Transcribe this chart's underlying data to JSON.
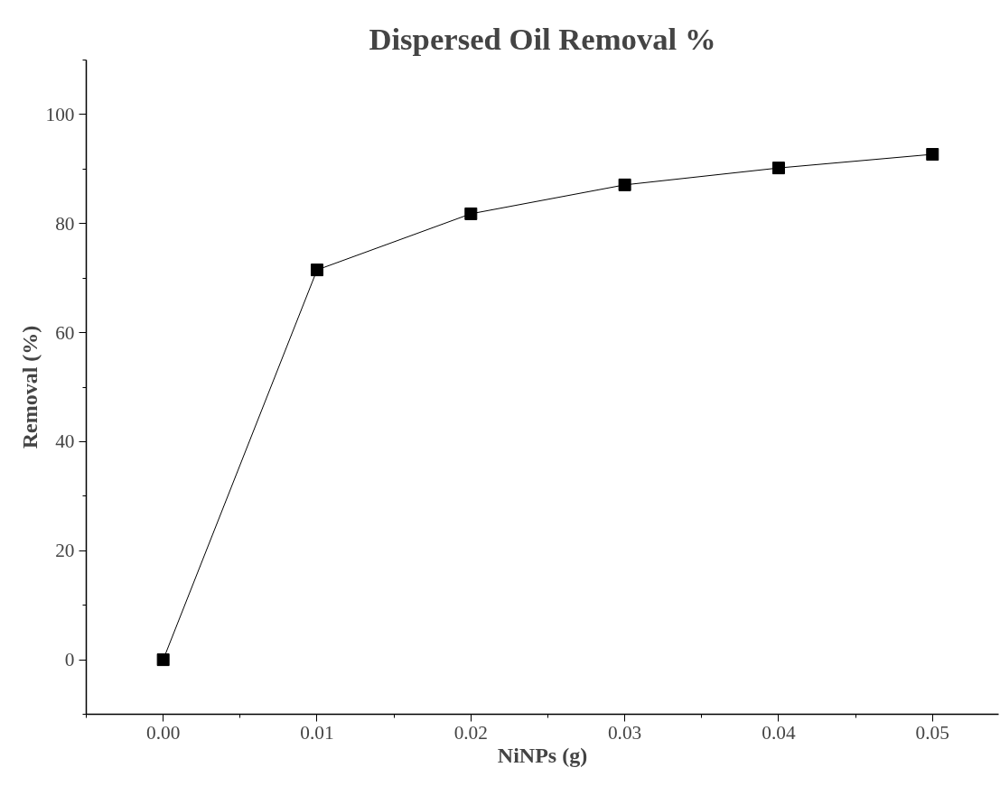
{
  "chart_data": {
    "type": "line",
    "title": "Dispersed Oil Removal %",
    "xlabel": "NiNPs (g)",
    "ylabel": "Removal (%)",
    "x": [
      0.0,
      0.01,
      0.02,
      0.03,
      0.04,
      0.05
    ],
    "series": [
      {
        "color": "#000000",
        "values": [
          0,
          71.5,
          81.8,
          87.1,
          90.2,
          92.7
        ]
      }
    ],
    "xlim": [
      -0.005,
      0.0543
    ],
    "xticks": [
      {
        "value": 0.0,
        "label": "0.00"
      },
      {
        "value": 0.01,
        "label": "0.01"
      },
      {
        "value": 0.02,
        "label": "0.02"
      },
      {
        "value": 0.03,
        "label": "0.03"
      },
      {
        "value": 0.04,
        "label": "0.04"
      },
      {
        "value": 0.05,
        "label": "0.05"
      }
    ],
    "ylim": [
      -10,
      110
    ],
    "yticks": [
      0,
      20,
      40,
      60,
      80,
      100
    ],
    "marker": "square",
    "grid": false
  }
}
